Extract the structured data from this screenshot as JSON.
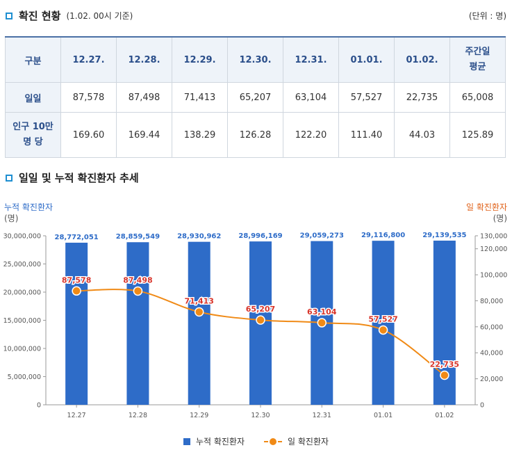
{
  "section1": {
    "title": "확진 현황",
    "note": "(1.02. 00시 기준)",
    "unit": "(단위 : 명)"
  },
  "table": {
    "header_first": "구분",
    "dates": [
      "12.27.",
      "12.28.",
      "12.29.",
      "12.30.",
      "12.31.",
      "01.01.",
      "01.02."
    ],
    "avg_header_line1": "주간일",
    "avg_header_line2": "평균",
    "row1": {
      "label": "일일",
      "values": [
        "87,578",
        "87,498",
        "71,413",
        "65,207",
        "63,104",
        "57,527",
        "22,735"
      ],
      "avg": "65,008"
    },
    "row2": {
      "label_line1": "인구 10만",
      "label_line2": "명 당",
      "values": [
        "169.60",
        "169.44",
        "138.29",
        "126.28",
        "122.20",
        "111.40",
        "44.03"
      ],
      "avg": "125.89"
    }
  },
  "section2": {
    "title": "일일 및 누적 확진환자 추세"
  },
  "chart_data": {
    "type": "bar",
    "categories": [
      "12.27",
      "12.28",
      "12.29",
      "12.30",
      "12.31",
      "01.01",
      "01.02"
    ],
    "series": [
      {
        "name": "누적 확진환자",
        "type": "bar",
        "axis": "left",
        "color": "#2e6cc8",
        "values": [
          28772051,
          28859549,
          28930962,
          28996169,
          29059273,
          29116800,
          29139535
        ],
        "labels": [
          "28,772,051",
          "28,859,549",
          "28,930,962",
          "28,996,169",
          "29,059,273",
          "29,116,800",
          "29,139,535"
        ]
      },
      {
        "name": "일 확진환자",
        "type": "line",
        "axis": "right",
        "color": "#f08a16",
        "values": [
          87578,
          87498,
          71413,
          65207,
          63104,
          57527,
          22735
        ],
        "labels": [
          "87,578",
          "87,498",
          "71,413",
          "65,207",
          "63,104",
          "57,527",
          "22,735"
        ]
      }
    ],
    "left_axis": {
      "title_line1": "누적 확진환자",
      "title_line2": "(명)",
      "ylim": [
        0,
        30000000
      ],
      "ticks": [
        "0",
        "5,000,000",
        "10,000,000",
        "15,000,000",
        "20,000,000",
        "25,000,000",
        "30,000,000"
      ]
    },
    "right_axis": {
      "title_line1": "일 확진환자",
      "title_line2": "(명)",
      "ylim": [
        0,
        130000
      ],
      "tick_values": [
        0,
        20000,
        40000,
        60000,
        80000,
        100000,
        120000,
        130000
      ],
      "ticks": [
        "0",
        "20,000",
        "40,000",
        "60,000",
        "80,000",
        "100,000",
        "120,000",
        "130,000"
      ]
    },
    "legend_position": "bottom"
  }
}
